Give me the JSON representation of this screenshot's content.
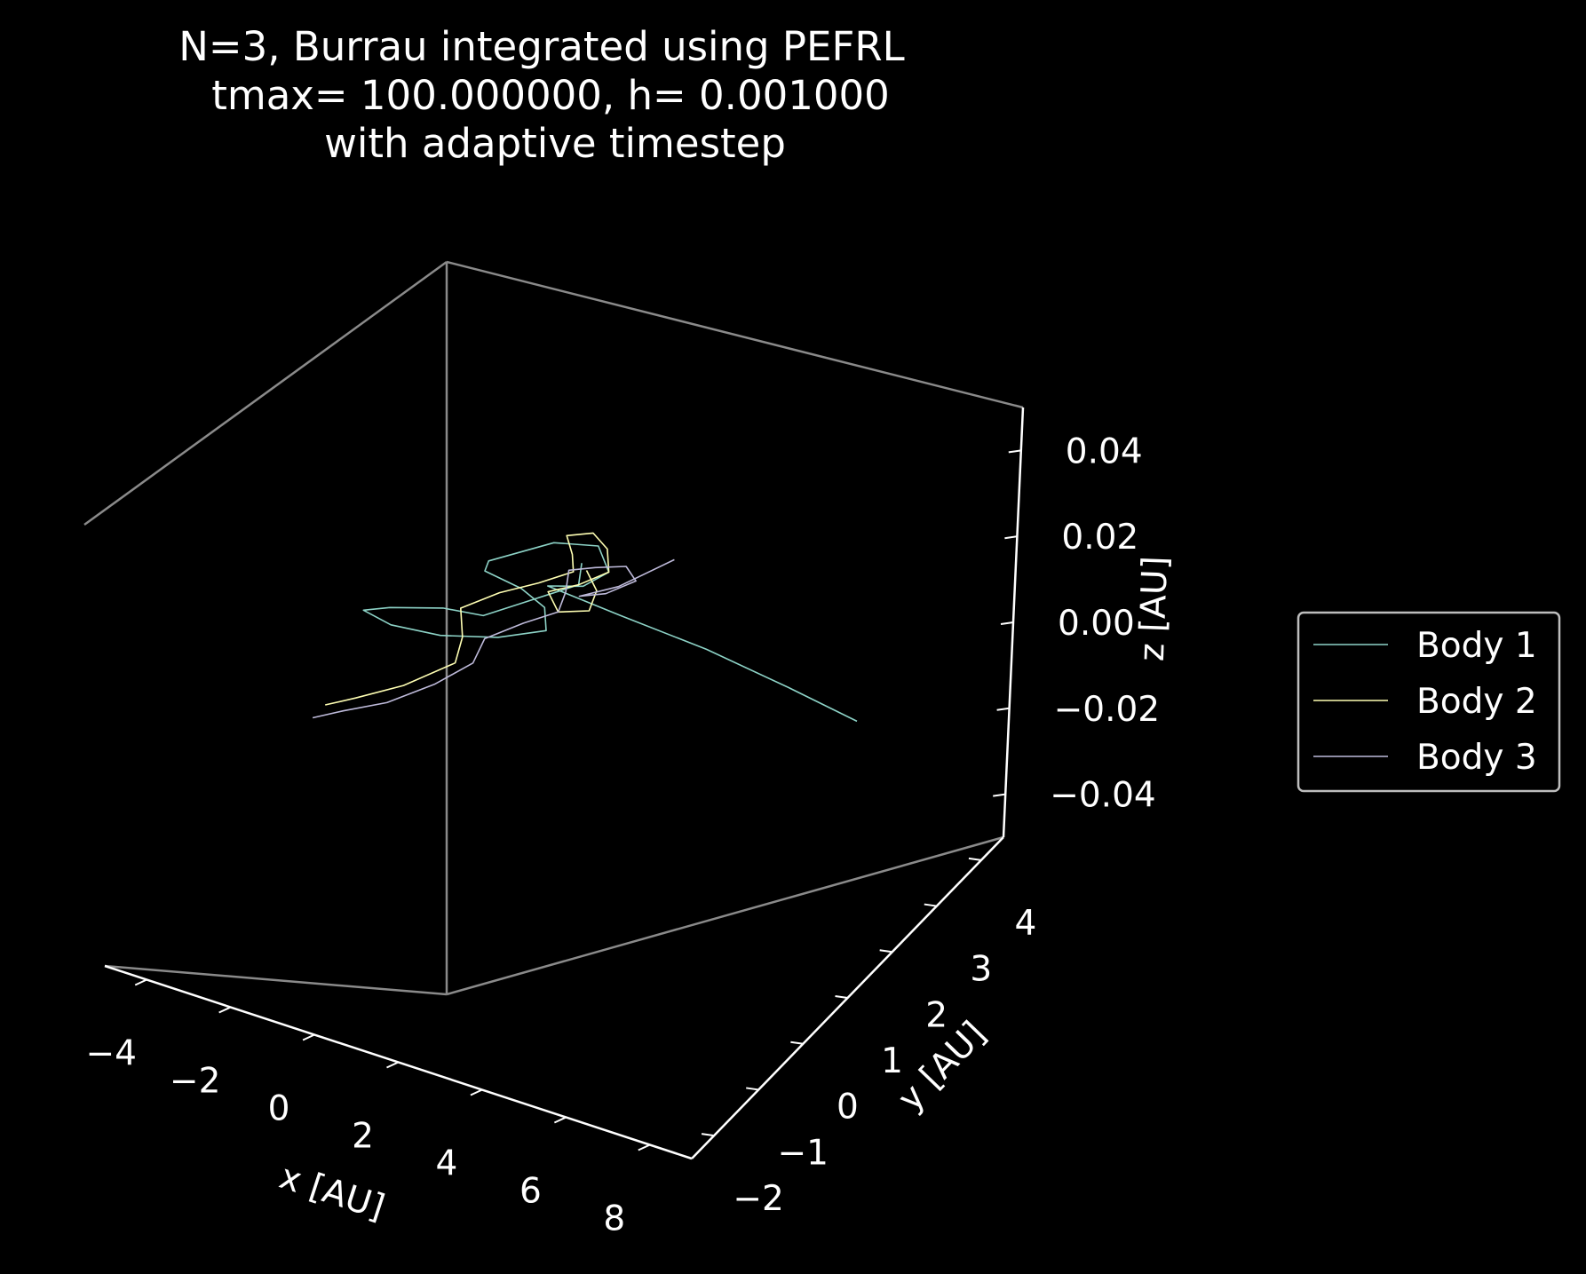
{
  "chart_data": {
    "type": "line",
    "projection": "3d",
    "title": [
      "N=3, Burrau integrated using PEFRL",
      "tmax= 100.000000, h= 0.001000",
      "with adaptive timestep"
    ],
    "xlabel": "x [AU]",
    "ylabel": "y [AU]",
    "zlabel": "z [AU]",
    "xlim": [
      -4.5,
      8.5
    ],
    "ylim": [
      -2.5,
      5
    ],
    "zlim": [
      -0.05,
      0.05
    ],
    "x_ticks": [
      "−4",
      "−2",
      "0",
      "2",
      "4",
      "6",
      "8"
    ],
    "y_ticks": [
      "−2",
      "−1",
      "0",
      "1",
      "2",
      "3",
      "4"
    ],
    "z_ticks": [
      "0.04",
      "0.02",
      "0.00",
      "−0.02",
      "−0.04"
    ],
    "background": "#000000",
    "grid": false,
    "legend_position": "right",
    "series": [
      {
        "name": "Body 1",
        "color": "#8dd3c7",
        "x": [
          1,
          1.3,
          0.7,
          0.2,
          -0.6,
          -1.5,
          -1.9,
          -1.2,
          -0.2,
          0.8,
          1.5,
          1.1,
          0.4,
          -0.5,
          -0.6,
          0.2,
          1.0,
          1.6,
          1.4,
          0.8,
          2.5,
          4.5,
          6.5,
          8.2
        ],
        "y": [
          3,
          2.6,
          2.0,
          1.5,
          1.4,
          1.1,
          0.9,
          0.8,
          0.9,
          1.2,
          1.6,
          2.0,
          2.2,
          2.3,
          2.5,
          3.2,
          3.4,
          3.0,
          2.6,
          2.4,
          2.3,
          2.2,
          2.0,
          1.8
        ],
        "z": [
          0,
          0,
          0,
          0,
          0,
          0,
          0,
          0,
          0,
          0,
          0,
          0,
          0,
          0,
          0,
          0,
          0,
          0,
          0,
          0,
          0,
          0,
          0,
          0
        ]
      },
      {
        "name": "Body 2",
        "color": "#ffffb3",
        "x": [
          -1,
          -0.6,
          0.0,
          0.5,
          0.2,
          -0.3,
          0.1,
          0.6,
          1.0,
          0.7,
          0.3,
          0.7,
          1.2,
          1.6,
          1.3,
          0.9,
          1.4,
          1.9,
          1.7,
          1.2
        ],
        "y": [
          -1,
          -0.7,
          -0.2,
          0.5,
          1.0,
          1.5,
          2.0,
          2.4,
          2.8,
          3.1,
          3.4,
          3.6,
          3.4,
          3.0,
          2.6,
          2.3,
          2.0,
          2.2,
          2.6,
          2.9
        ],
        "z": [
          0,
          0,
          0,
          0,
          0,
          0,
          0,
          0,
          0,
          0,
          0,
          0,
          0,
          0,
          0,
          0,
          0,
          0,
          0,
          0
        ]
      },
      {
        "name": "Body 3",
        "color": "#bebada",
        "x": [
          -1,
          -0.6,
          0.0,
          0.5,
          0.8,
          0.6,
          1.0,
          1.4,
          1.2,
          0.9,
          1.3,
          1.8,
          2.2,
          1.9,
          1.5,
          2.0,
          2.5
        ],
        "y": [
          -1.3,
          -1.0,
          -0.6,
          0.0,
          0.6,
          1.1,
          1.6,
          2.0,
          2.4,
          2.8,
          3.0,
          3.2,
          3.0,
          2.6,
          2.4,
          2.8,
          3.6
        ],
        "z": [
          0,
          0,
          0,
          0,
          0,
          0,
          0,
          0,
          0,
          0,
          0,
          0,
          0,
          0,
          0,
          0,
          0
        ]
      }
    ]
  }
}
